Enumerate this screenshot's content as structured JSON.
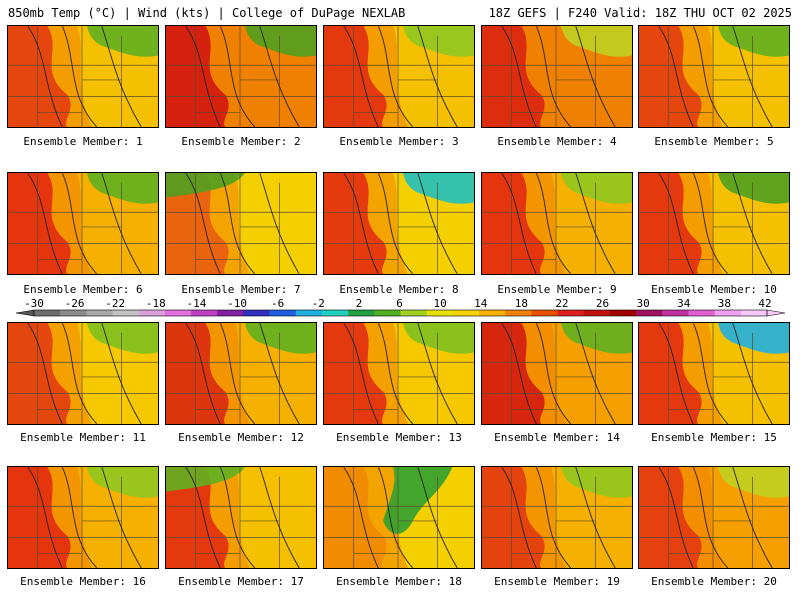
{
  "header": {
    "left": "850mb Temp (°C) | Wind (kts) | College of DuPage NEXLAB",
    "right": "18Z GEFS | F240 Valid: 18Z THU OCT 02 2025"
  },
  "colorbar": {
    "labels": [
      "-30",
      "-26",
      "-22",
      "-18",
      "-14",
      "-10",
      "-6",
      "-2",
      "2",
      "6",
      "10",
      "14",
      "18",
      "22",
      "26",
      "30",
      "34",
      "38",
      "42"
    ],
    "colors": [
      "#6e6e6e",
      "#8c8c8c",
      "#a8a8a8",
      "#c2c2c2",
      "#d9a0d9",
      "#e070e0",
      "#c040c0",
      "#8020a0",
      "#3030c0",
      "#2060e0",
      "#20b0e0",
      "#20d0c0",
      "#20a040",
      "#50b020",
      "#a0d020",
      "#e8e000",
      "#f5d400",
      "#f5b000",
      "#f08000",
      "#e85000",
      "#e02020",
      "#c01010",
      "#a00000",
      "#a01060",
      "#c030a0",
      "#e060d0",
      "#f0a0f0",
      "#f8c8f8"
    ]
  },
  "panels": [
    {
      "caption": "Ensemble Member: 1",
      "base": "#f5c000",
      "warm": "#e03010",
      "cool": "#60b020",
      "coolPos": "top-right"
    },
    {
      "caption": "Ensemble Member: 2",
      "base": "#f08000",
      "warm": "#d01010",
      "cool": "#50a020",
      "coolPos": "top-right"
    },
    {
      "caption": "Ensemble Member: 3",
      "base": "#f5c000",
      "warm": "#e02010",
      "cool": "#90c820",
      "coolPos": "top-right"
    },
    {
      "caption": "Ensemble Member: 4",
      "base": "#f08000",
      "warm": "#d82010",
      "cool": "#c0d020",
      "coolPos": "top-right"
    },
    {
      "caption": "Ensemble Member: 5",
      "base": "#f5c000",
      "warm": "#e03010",
      "cool": "#60b020",
      "coolPos": "top-right"
    },
    {
      "caption": "Ensemble Member: 6",
      "base": "#f5b000",
      "warm": "#e02010",
      "cool": "#60b020",
      "coolPos": "top-right"
    },
    {
      "caption": "Ensemble Member: 7",
      "base": "#f5d000",
      "warm": "#e85010",
      "cool": "#50a020",
      "coolPos": "top-left"
    },
    {
      "caption": "Ensemble Member: 8",
      "base": "#f5d000",
      "warm": "#e02010",
      "cool": "#20c0c0",
      "coolPos": "top-right"
    },
    {
      "caption": "Ensemble Member: 9",
      "base": "#f5b000",
      "warm": "#e02010",
      "cool": "#90c820",
      "coolPos": "top-right"
    },
    {
      "caption": "Ensemble Member: 10",
      "base": "#f5c000",
      "warm": "#e02010",
      "cool": "#50a020",
      "coolPos": "top-right"
    },
    {
      "caption": "Ensemble Member: 11",
      "base": "#f5c800",
      "warm": "#e03010",
      "cool": "#80c020",
      "coolPos": "top-right"
    },
    {
      "caption": "Ensemble Member: 12",
      "base": "#f5b000",
      "warm": "#d82010",
      "cool": "#60b020",
      "coolPos": "top-right"
    },
    {
      "caption": "Ensemble Member: 13",
      "base": "#f5c800",
      "warm": "#e02010",
      "cool": "#80c020",
      "coolPos": "top-right"
    },
    {
      "caption": "Ensemble Member: 14",
      "base": "#f5a000",
      "warm": "#d01010",
      "cool": "#60b020",
      "coolPos": "top-right"
    },
    {
      "caption": "Ensemble Member: 15",
      "base": "#f5c000",
      "warm": "#e02010",
      "cool": "#20b0e0",
      "coolPos": "top-right"
    },
    {
      "caption": "Ensemble Member: 16",
      "base": "#f5b000",
      "warm": "#e02010",
      "cool": "#90c820",
      "coolPos": "top-right"
    },
    {
      "caption": "Ensemble Member: 17",
      "base": "#f5c000",
      "warm": "#e02010",
      "cool": "#60b020",
      "coolPos": "top-left"
    },
    {
      "caption": "Ensemble Member: 18",
      "base": "#f5d000",
      "warm": "#f08000",
      "cool": "#30a030",
      "coolPos": "center"
    },
    {
      "caption": "Ensemble Member: 19",
      "base": "#f5b000",
      "warm": "#e03010",
      "cool": "#90c820",
      "coolPos": "top-right"
    },
    {
      "caption": "Ensemble Member: 20",
      "base": "#f5a000",
      "warm": "#e03010",
      "cool": "#c0d020",
      "coolPos": "top-right"
    }
  ]
}
